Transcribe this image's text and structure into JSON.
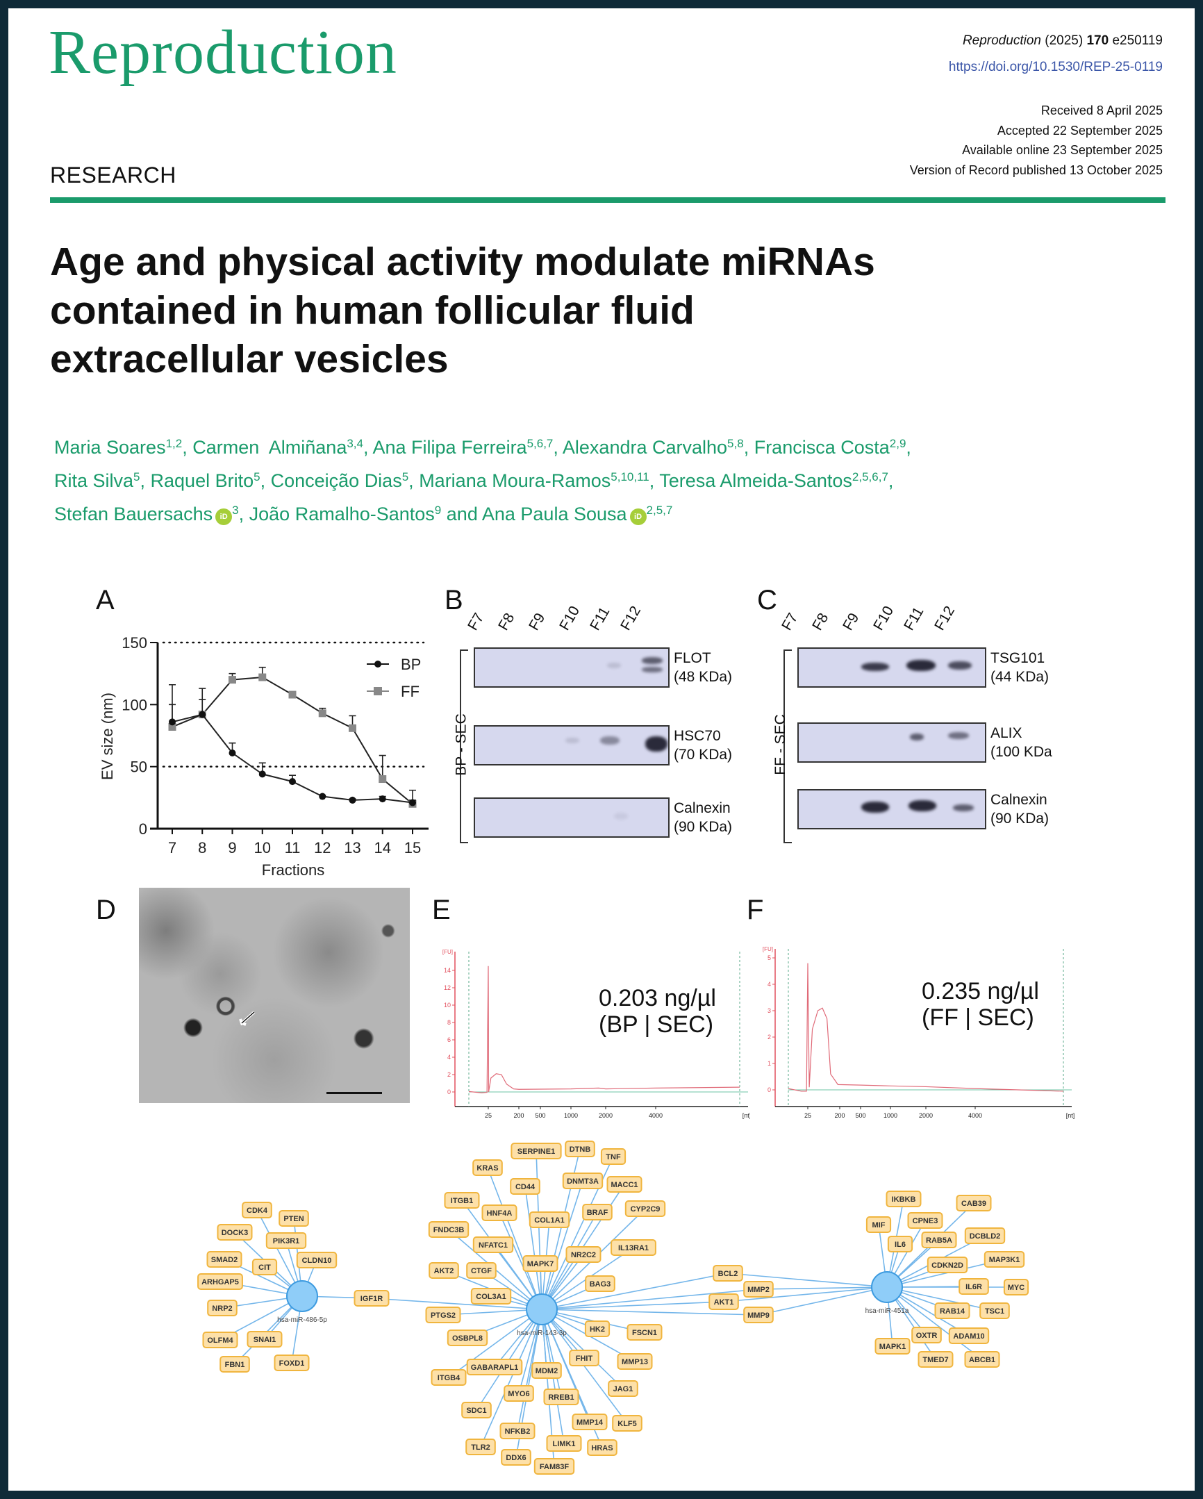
{
  "header": {
    "journal": "Reproduction",
    "citation_journal": "Reproduction",
    "citation_year": "(2025)",
    "citation_volume": "170",
    "citation_id": "e250119",
    "doi": "https://doi.org/10.1530/REP-25-0119",
    "dates": [
      "Received 8 April 2025",
      "Accepted 22 September 2025",
      "Available online 23 September 2025",
      "Version of Record published 13 October 2025"
    ],
    "section": "RESEARCH"
  },
  "title_lines": [
    "Age and physical activity modulate miRNAs",
    "contained in human follicular fluid",
    "extracellular vesicles"
  ],
  "authors": [
    {
      "name": "Maria Soares",
      "aff": "1,2"
    },
    {
      "name": "Carmen  Almiñana",
      "aff": "3,4"
    },
    {
      "name": "Ana Filipa Ferreira",
      "aff": "5,6,7"
    },
    {
      "name": "Alexandra Carvalho",
      "aff": "5,8"
    },
    {
      "name": "Francisca Costa",
      "aff": "2,9"
    },
    {
      "name": "Rita Silva",
      "aff": "5"
    },
    {
      "name": "Raquel Brito",
      "aff": "5"
    },
    {
      "name": "Conceição Dias",
      "aff": "5"
    },
    {
      "name": "Mariana Moura-Ramos",
      "aff": "5,10,11"
    },
    {
      "name": "Teresa Almeida-Santos",
      "aff": "2,5,6,7"
    },
    {
      "name": "Stefan Bauersachs",
      "aff": "3",
      "orcid": "iD"
    },
    {
      "name": "João Ramalho-Santos",
      "aff": "9"
    },
    {
      "name": "Ana Paula Sousa",
      "aff": "2,5,7",
      "orcid": "iD"
    }
  ],
  "authors_conjunction": "and",
  "figure": {
    "panel_labels": [
      "A",
      "B",
      "C",
      "D",
      "E",
      "F"
    ],
    "blot_b": {
      "side_label": "BP - SEC",
      "lanes": [
        "F7",
        "F8",
        "F9",
        "F10",
        "F11",
        "F12"
      ],
      "markers": [
        [
          "FLOT",
          "(48 KDa)"
        ],
        [
          "HSC70",
          "(70 KDa)"
        ],
        [
          "Calnexin",
          "(90 KDa)"
        ]
      ]
    },
    "blot_c": {
      "side_label": "FF - SEC",
      "lanes": [
        "F7",
        "F8",
        "F9",
        "F10",
        "F11",
        "F12"
      ],
      "markers": [
        [
          "TSG101",
          "(44 KDa)"
        ],
        [
          "ALIX",
          "(100 KDa"
        ],
        [
          "Calnexin",
          "(90 KDa)"
        ]
      ]
    },
    "conc_e": [
      "0.203 ng/µl",
      "(BP | SEC)"
    ],
    "conc_f": [
      "0.235 ng/µl",
      "(FF | SEC)"
    ]
  },
  "chart_data": [
    {
      "type": "line",
      "panel": "A",
      "xlabel": "Fractions",
      "ylabel": "EV size (nm)",
      "ylim": [
        0,
        150
      ],
      "yticks": [
        0,
        50,
        100,
        150
      ],
      "x": [
        7,
        8,
        9,
        10,
        11,
        12,
        13,
        14,
        15
      ],
      "reference_lines": [
        50,
        150
      ],
      "legend": "top-right",
      "series": [
        {
          "name": "BP",
          "marker": "circle",
          "color": "#111111",
          "values": [
            86,
            92,
            61,
            44,
            38,
            26,
            23,
            24,
            21
          ],
          "err_upper": [
            100,
            104,
            69,
            53,
            43,
            27,
            24,
            26,
            23
          ]
        },
        {
          "name": "FF",
          "marker": "square",
          "color": "#888888",
          "values": [
            82,
            92,
            120,
            122,
            108,
            93,
            81,
            40,
            20
          ],
          "err_upper": [
            116,
            113,
            125,
            130,
            109,
            97,
            91,
            59,
            31
          ]
        }
      ]
    },
    {
      "type": "line",
      "panel": "E",
      "ylabel": "[FU]",
      "xlabel": "[nt]",
      "yticks": [
        0,
        2,
        4,
        6,
        8,
        10,
        12,
        14
      ],
      "xticks": [
        "25",
        "200",
        "500",
        "1000",
        "2000",
        "4000"
      ],
      "series": [
        {
          "name": "BP | SEC",
          "color": "#e06a78",
          "points": [
            [
              10,
              0.05
            ],
            [
              20,
              -0.1
            ],
            [
              24,
              -0.05
            ],
            [
              25,
              14.5
            ],
            [
              27,
              0
            ],
            [
              40,
              1.6
            ],
            [
              70,
              2.1
            ],
            [
              100,
              2.0
            ],
            [
              130,
              0.9
            ],
            [
              170,
              0.35
            ],
            [
              200,
              0.3
            ],
            [
              1000,
              0.35
            ],
            [
              1800,
              0.45
            ],
            [
              2000,
              0.35
            ],
            [
              4000,
              0.45
            ],
            [
              10000,
              0.55
            ]
          ]
        }
      ]
    },
    {
      "type": "line",
      "panel": "F",
      "ylabel": "[FU]",
      "xlabel": "[nt]",
      "yticks": [
        0,
        1,
        2,
        3,
        4,
        5
      ],
      "xticks": [
        "25",
        "200",
        "500",
        "1000",
        "2000",
        "4000"
      ],
      "series": [
        {
          "name": "FF | SEC",
          "color": "#e06a78",
          "points": [
            [
              10,
              0.05
            ],
            [
              20,
              -0.05
            ],
            [
              24,
              -0.05
            ],
            [
              25,
              4.8
            ],
            [
              33,
              0.1
            ],
            [
              50,
              2.3
            ],
            [
              80,
              3.0
            ],
            [
              105,
              3.1
            ],
            [
              130,
              2.7
            ],
            [
              150,
              0.6
            ],
            [
              190,
              0.2
            ],
            [
              500,
              0.18
            ],
            [
              1000,
              0.15
            ],
            [
              2000,
              0.12
            ],
            [
              4000,
              0.05
            ],
            [
              10000,
              -0.05
            ]
          ]
        }
      ]
    }
  ],
  "network": {
    "hubs": [
      "hsa-miR-486-5p",
      "hsa-miR-143-3p",
      "hsa-miR-451a"
    ],
    "targets_486": [
      "CDK4",
      "PTEN",
      "DOCK3",
      "PIK3R1",
      "SMAD2",
      "CIT",
      "CLDN10",
      "ARHGAP5",
      "NRP2",
      "OLFM4",
      "SNAI1",
      "FBN1",
      "FOXD1",
      "IGF1R"
    ],
    "targets_143": [
      "SERPINE1",
      "DTNB",
      "TNF",
      "KRAS",
      "CD44",
      "DNMT3A",
      "MACC1",
      "ITGB1",
      "HNF4A",
      "COL1A1",
      "BRAF",
      "CYP2C9",
      "FNDC3B",
      "NFATC1",
      "NR2C2",
      "IL13RA1",
      "MAPK7",
      "AKT2",
      "CTGF",
      "BAG3",
      "COL3A1",
      "PTGS2",
      "HK2",
      "FSCN1",
      "OSBPL8",
      "FHIT",
      "MMP13",
      "GABARAPL1",
      "MDM2",
      "ITGB4",
      "JAG1",
      "MYO6",
      "RREB1",
      "SDC1",
      "MMP14",
      "KLF5",
      "NFKB2",
      "TLR2",
      "LIMK1",
      "HRAS",
      "DDX6",
      "FAM83F",
      "IGF1R",
      "BCL2",
      "MMP2",
      "AKT1",
      "MMP9"
    ],
    "targets_451a": [
      "IKBKB",
      "CAB39",
      "MIF",
      "CPNE3",
      "IL6",
      "RAB5A",
      "DCBLD2",
      "CDKN2D",
      "MAP3K1",
      "IL6R",
      "MYC",
      "RAB14",
      "TSC1",
      "OXTR",
      "ADAM10",
      "MAPK1",
      "TMED7",
      "ABCB1",
      "BCL2",
      "MMP2",
      "AKT1",
      "MMP9"
    ],
    "colors": {
      "edge": "#74b6ea",
      "hub_fill": "#8fcdf8",
      "hub_stroke": "#3d9be0",
      "node_fill": "#fde0a8",
      "node_stroke": "#f0b53e"
    }
  }
}
